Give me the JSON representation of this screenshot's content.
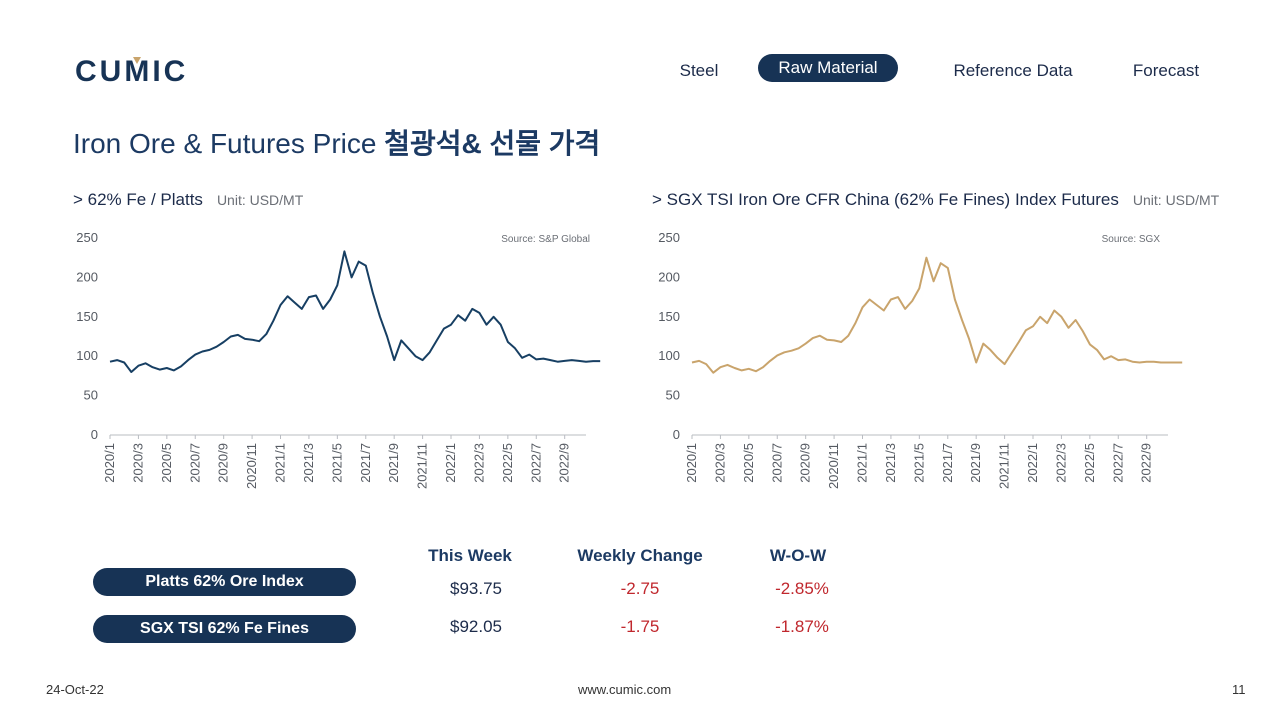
{
  "brand": "CUMIC",
  "nav": {
    "items": [
      {
        "label": "Steel"
      },
      {
        "label": "Raw Material"
      },
      {
        "label": "Reference Data"
      },
      {
        "label": "Forecast"
      }
    ],
    "active": "Raw Material"
  },
  "page": {
    "title_en": "Iron Ore & Futures Price ",
    "title_ko": "철광석& 선물 가격"
  },
  "colors": {
    "navy": "#173355",
    "platts_line": "#173f63",
    "sgx_line": "#c9a46c",
    "negative": "#c0272d"
  },
  "charts": {
    "platts": {
      "heading": "> 62% Fe / Platts",
      "unit": "Unit: USD/MT",
      "source": "Source: S&P Global"
    },
    "sgx": {
      "heading": "> SGX TSI Iron Ore CFR China (62% Fe Fines) Index Futures",
      "unit": "Unit: USD/MT",
      "source": "Source: SGX"
    }
  },
  "chart_data": [
    {
      "type": "line",
      "title": "> 62% Fe / Platts",
      "ylabel": "Unit: USD/MT",
      "ylim": [
        0,
        250
      ],
      "yticks": [
        0,
        50,
        100,
        150,
        200,
        250
      ],
      "grid": false,
      "xtick_labels": [
        "2020/1",
        "2020/3",
        "2020/5",
        "2020/7",
        "2020/9",
        "2020/11",
        "2021/1",
        "2021/3",
        "2021/5",
        "2021/7",
        "2021/9",
        "2021/11",
        "2022/1",
        "2022/3",
        "2022/5",
        "2022/7",
        "2022/9"
      ],
      "series": [
        {
          "color": "#173f63",
          "x": [
            0,
            0.5,
            1,
            1.5,
            2,
            2.5,
            3,
            3.5,
            4,
            4.5,
            5,
            5.5,
            6,
            6.5,
            7,
            7.5,
            8,
            8.5,
            9,
            9.5,
            10,
            10.5,
            11,
            11.5,
            12,
            12.5,
            13,
            13.5,
            14,
            14.5,
            15,
            15.5,
            16,
            16.5,
            17,
            17.5,
            18,
            18.5,
            19,
            19.5,
            20,
            20.5,
            21,
            21.5,
            22,
            22.5,
            23,
            23.5,
            24,
            24.5,
            25,
            25.5,
            26,
            26.5,
            27,
            27.5,
            28,
            28.5,
            29,
            29.5,
            30,
            30.5,
            31,
            31.5,
            32,
            32.5,
            33,
            33.5,
            34,
            34.5
          ],
          "y": [
            93,
            95,
            92,
            80,
            88,
            91,
            86,
            83,
            85,
            82,
            87,
            95,
            102,
            106,
            108,
            112,
            118,
            125,
            127,
            122,
            121,
            119,
            128,
            145,
            165,
            176,
            168,
            160,
            175,
            177,
            160,
            172,
            190,
            233,
            200,
            220,
            215,
            180,
            150,
            125,
            95,
            120,
            110,
            100,
            95,
            105,
            120,
            135,
            140,
            152,
            145,
            160,
            155,
            140,
            150,
            140,
            118,
            110,
            98,
            102,
            96,
            97,
            95,
            93,
            94,
            95,
            94,
            93,
            93.75,
            93.75
          ]
        }
      ]
    },
    {
      "type": "line",
      "title": "> SGX TSI Iron Ore CFR China (62% Fe Fines) Index Futures",
      "ylabel": "Unit: USD/MT",
      "ylim": [
        0,
        250
      ],
      "yticks": [
        0,
        50,
        100,
        150,
        200,
        250
      ],
      "grid": false,
      "xtick_labels": [
        "2020/1",
        "2020/3",
        "2020/5",
        "2020/7",
        "2020/9",
        "2020/11",
        "2021/1",
        "2021/3",
        "2021/5",
        "2021/7",
        "2021/9",
        "2021/11",
        "2022/1",
        "2022/3",
        "2022/5",
        "2022/7",
        "2022/9"
      ],
      "series": [
        {
          "color": "#c9a46c",
          "x": [
            0,
            0.5,
            1,
            1.5,
            2,
            2.5,
            3,
            3.5,
            4,
            4.5,
            5,
            5.5,
            6,
            6.5,
            7,
            7.5,
            8,
            8.5,
            9,
            9.5,
            10,
            10.5,
            11,
            11.5,
            12,
            12.5,
            13,
            13.5,
            14,
            14.5,
            15,
            15.5,
            16,
            16.5,
            17,
            17.5,
            18,
            18.5,
            19,
            19.5,
            20,
            20.5,
            21,
            21.5,
            22,
            22.5,
            23,
            23.5,
            24,
            24.5,
            25,
            25.5,
            26,
            26.5,
            27,
            27.5,
            28,
            28.5,
            29,
            29.5,
            30,
            30.5,
            31,
            31.5,
            32,
            32.5,
            33,
            33.5,
            34,
            34.5
          ],
          "y": [
            92,
            94,
            90,
            79,
            86,
            89,
            85,
            82,
            84,
            81,
            86,
            94,
            101,
            105,
            107,
            110,
            116,
            123,
            126,
            121,
            120,
            118,
            126,
            142,
            162,
            172,
            165,
            158,
            172,
            175,
            160,
            170,
            186,
            225,
            195,
            218,
            212,
            172,
            146,
            122,
            92,
            116,
            108,
            98,
            90,
            104,
            118,
            133,
            138,
            150,
            142,
            158,
            150,
            136,
            146,
            132,
            115,
            108,
            96,
            100,
            95,
            96,
            93,
            92,
            93,
            93,
            92,
            92,
            92.05,
            92.05
          ]
        }
      ]
    }
  ],
  "table": {
    "headers": [
      "This Week",
      "Weekly Change",
      "W-O-W"
    ],
    "rows": [
      {
        "label": "Platts 62% Ore Index",
        "this_week": "$93.75",
        "weekly_change": "-2.75",
        "wow": "-2.85%"
      },
      {
        "label": "SGX TSI 62% Fe Fines",
        "this_week": "$92.05",
        "weekly_change": "-1.75",
        "wow": "-1.87%"
      }
    ]
  },
  "footer": {
    "date": "24-Oct-22",
    "url": "www.cumic.com",
    "page": "11"
  }
}
